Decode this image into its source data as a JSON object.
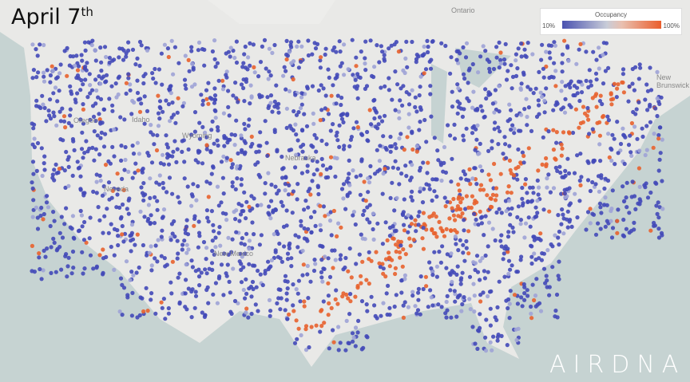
{
  "title": {
    "text": "April 7",
    "suffix": "th"
  },
  "legend": {
    "title": "Occupancy",
    "min_label": "10%",
    "max_label": "100%",
    "low_color": "#4a52b0",
    "high_color": "#ea5e2c"
  },
  "logo": "AIRDNA",
  "map_labels": [
    "Ontario",
    "New Brunswick",
    "Oregon",
    "Idaho",
    "Wyoming",
    "Nevada",
    "Nebraska",
    "New Mexico"
  ],
  "colors": {
    "water": "#c6d3d2",
    "land": "#e9e9e7",
    "low": "#4349b8",
    "high": "#e8622e"
  }
}
